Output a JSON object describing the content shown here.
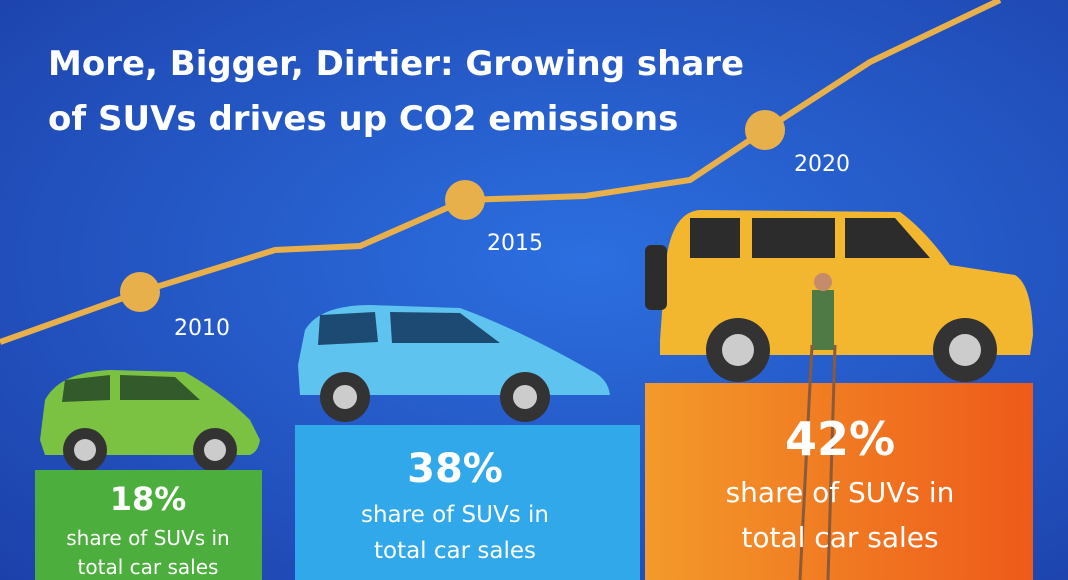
{
  "title": {
    "lines": [
      "More, Bigger, Dirtier: Growing share",
      "of SUVs drives up CO2 emissions"
    ]
  },
  "items": [
    {
      "year": "2010",
      "value": "18%",
      "description": [
        "share of SUVs in",
        "total car sales"
      ]
    },
    {
      "year": "2015",
      "value": "38%",
      "description": [
        "share of SUVs in",
        "total car sales"
      ]
    },
    {
      "year": "2020",
      "value": "42%",
      "description": [
        "share of SUVs in",
        "total car sales"
      ]
    }
  ]
}
